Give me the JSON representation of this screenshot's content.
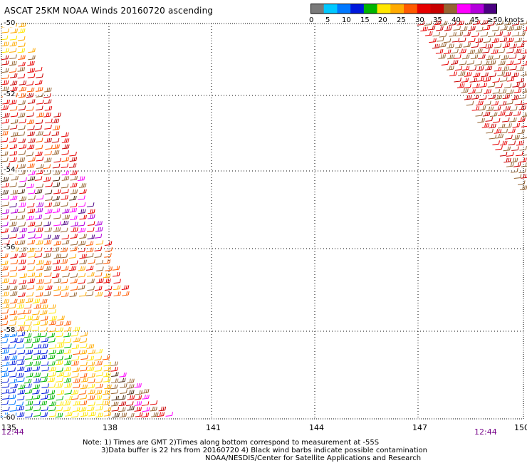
{
  "title": "ASCAT 25KM NOAA Winds 20160720 ascending",
  "colorbar": {
    "colors": [
      "#7a7a7a",
      "#00c8ff",
      "#0078ff",
      "#0018dc",
      "#00b400",
      "#ffe600",
      "#ffaa00",
      "#ff5a00",
      "#e60000",
      "#c80000",
      "#966432",
      "#ff00ff",
      "#b400dc",
      "#4b0082"
    ],
    "labels": [
      "0",
      "5",
      "10",
      "15",
      "20",
      "25",
      "30",
      "35",
      "40",
      "45",
      "≥50 knots"
    ]
  },
  "map": {
    "lat_labels": [
      "-50",
      "-52",
      "-54",
      "-56",
      "-58",
      "-60"
    ],
    "lon_labels": [
      "135",
      "138",
      "141",
      "144",
      "147",
      "150"
    ],
    "lat_range": [
      -60,
      -50
    ],
    "lon_range": [
      135,
      150
    ],
    "time_left": "12:44",
    "time_right": "12:44"
  },
  "notes": {
    "line1": "Note: 1) Times are GMT 2)Times along bottom correspond to measurement at -55S",
    "line2": "3)Data buffer is 22 hrs from 20160720 4) Black wind barbs indicate possible contamination",
    "line3": "NOAA/NESDIS/Center for Satellite Applications and Research"
  }
}
